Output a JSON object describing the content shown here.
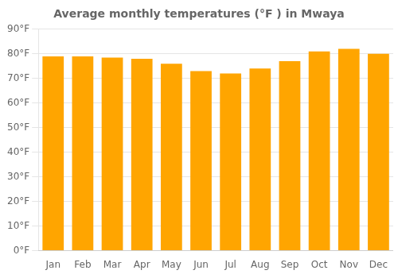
{
  "chart_data": {
    "type": "bar",
    "title": "Average monthly temperatures (°F ) in Mwaya",
    "categories": [
      "Jan",
      "Feb",
      "Mar",
      "Apr",
      "May",
      "Jun",
      "Jul",
      "Aug",
      "Sep",
      "Oct",
      "Nov",
      "Dec"
    ],
    "values": [
      79,
      79,
      78.5,
      78,
      76,
      73,
      72,
      74,
      77,
      81,
      82,
      80
    ],
    "color": "#FFA500",
    "ylim": [
      0,
      90
    ],
    "yticks": [
      {
        "value": 0,
        "label": "0°F"
      },
      {
        "value": 10,
        "label": "10°F"
      },
      {
        "value": 20,
        "label": "20°F"
      },
      {
        "value": 30,
        "label": "30°F"
      },
      {
        "value": 40,
        "label": "40°F"
      },
      {
        "value": 50,
        "label": "50°F"
      },
      {
        "value": 60,
        "label": "60°F"
      },
      {
        "value": 70,
        "label": "70°F"
      },
      {
        "value": 80,
        "label": "80°F"
      },
      {
        "value": 90,
        "label": "90°F"
      }
    ],
    "grid": true
  }
}
